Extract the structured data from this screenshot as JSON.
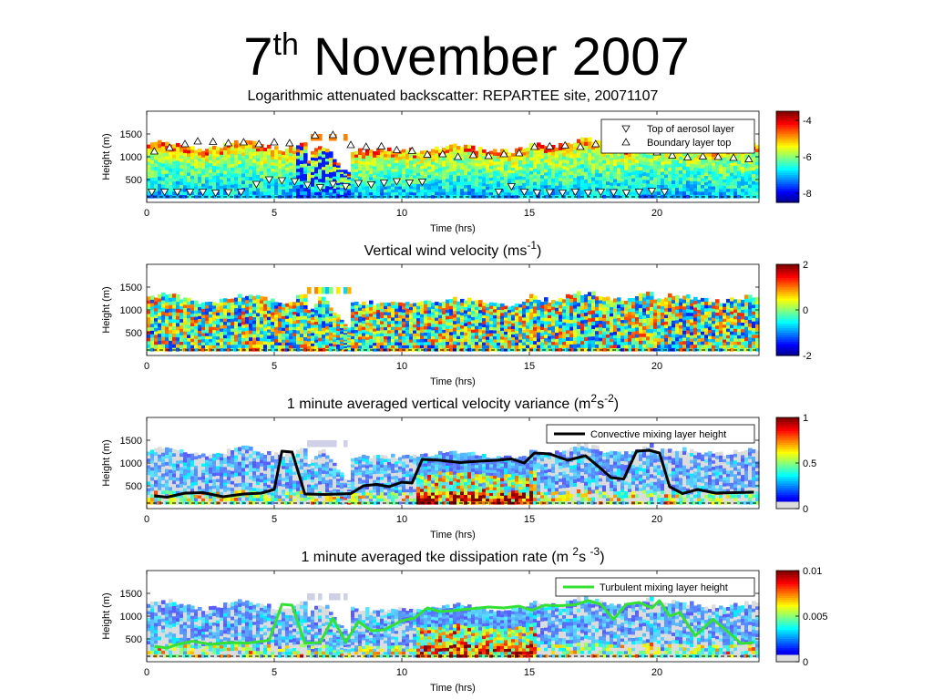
{
  "page_title": {
    "main": "7",
    "sup": "th",
    "rest": " November 2007"
  },
  "chart_data": [
    {
      "type": "heatmap",
      "title": "Logarithmic attenuated backscatter: REPARTEE site, 20071107",
      "xlabel": "Time (hrs)",
      "ylabel": "Height (m)",
      "xlim": [
        0,
        24
      ],
      "xticks": [
        "0",
        "5",
        "10",
        "15",
        "20"
      ],
      "yticks": [
        "500",
        "1000",
        "1500"
      ],
      "colorbar": {
        "ticks": [
          "-4",
          "-6",
          "-8"
        ],
        "min": -8.5,
        "max": -3.5
      },
      "legend": [
        {
          "marker": "down-triangle",
          "label": "Top of aerosol layer"
        },
        {
          "marker": "up-triangle",
          "label": "Boundary layer top"
        }
      ],
      "markers": {
        "aerosol_top": [
          {
            "x": 0.2,
            "y": 230
          },
          {
            "x": 0.7,
            "y": 230
          },
          {
            "x": 1.2,
            "y": 230
          },
          {
            "x": 1.7,
            "y": 230
          },
          {
            "x": 2.2,
            "y": 230
          },
          {
            "x": 2.7,
            "y": 210
          },
          {
            "x": 3.2,
            "y": 220
          },
          {
            "x": 3.7,
            "y": 230
          },
          {
            "x": 4.3,
            "y": 400
          },
          {
            "x": 4.8,
            "y": 500
          },
          {
            "x": 5.3,
            "y": 480
          },
          {
            "x": 5.8,
            "y": 460
          },
          {
            "x": 6.3,
            "y": 380
          },
          {
            "x": 6.8,
            "y": 330
          },
          {
            "x": 7.3,
            "y": 400
          },
          {
            "x": 7.8,
            "y": 350
          },
          {
            "x": 8.3,
            "y": 420
          },
          {
            "x": 8.8,
            "y": 390
          },
          {
            "x": 9.3,
            "y": 430
          },
          {
            "x": 9.8,
            "y": 460
          },
          {
            "x": 10.3,
            "y": 430
          },
          {
            "x": 10.8,
            "y": 450
          },
          {
            "x": 13.8,
            "y": 230
          },
          {
            "x": 14.3,
            "y": 350
          },
          {
            "x": 14.8,
            "y": 230
          },
          {
            "x": 15.3,
            "y": 210
          },
          {
            "x": 15.8,
            "y": 220
          },
          {
            "x": 16.3,
            "y": 210
          },
          {
            "x": 16.8,
            "y": 230
          },
          {
            "x": 17.3,
            "y": 210
          },
          {
            "x": 17.8,
            "y": 230
          },
          {
            "x": 18.3,
            "y": 220
          },
          {
            "x": 18.8,
            "y": 210
          },
          {
            "x": 19.3,
            "y": 230
          },
          {
            "x": 19.8,
            "y": 250
          },
          {
            "x": 20.3,
            "y": 230
          }
        ],
        "boundary_top": [
          {
            "x": 0.3,
            "y": 1120
          },
          {
            "x": 0.9,
            "y": 1200
          },
          {
            "x": 1.5,
            "y": 1280
          },
          {
            "x": 2.0,
            "y": 1340
          },
          {
            "x": 2.6,
            "y": 1330
          },
          {
            "x": 3.2,
            "y": 1300
          },
          {
            "x": 3.8,
            "y": 1320
          },
          {
            "x": 4.4,
            "y": 1280
          },
          {
            "x": 5.0,
            "y": 1320
          },
          {
            "x": 5.6,
            "y": 1300
          },
          {
            "x": 6.6,
            "y": 1470
          },
          {
            "x": 7.3,
            "y": 1480
          },
          {
            "x": 8.0,
            "y": 1260
          },
          {
            "x": 8.6,
            "y": 1220
          },
          {
            "x": 9.2,
            "y": 1230
          },
          {
            "x": 9.8,
            "y": 1150
          },
          {
            "x": 10.4,
            "y": 1130
          },
          {
            "x": 11.0,
            "y": 1050
          },
          {
            "x": 11.6,
            "y": 1060
          },
          {
            "x": 12.2,
            "y": 1000
          },
          {
            "x": 12.8,
            "y": 1040
          },
          {
            "x": 13.4,
            "y": 1020
          },
          {
            "x": 14.0,
            "y": 1060
          },
          {
            "x": 14.6,
            "y": 1080
          },
          {
            "x": 15.2,
            "y": 1220
          },
          {
            "x": 15.8,
            "y": 1230
          },
          {
            "x": 16.4,
            "y": 1250
          },
          {
            "x": 17.0,
            "y": 1220
          },
          {
            "x": 17.6,
            "y": 1280
          },
          {
            "x": 18.2,
            "y": 1300
          },
          {
            "x": 18.8,
            "y": 1230
          },
          {
            "x": 19.4,
            "y": 1170
          },
          {
            "x": 20.0,
            "y": 1100
          },
          {
            "x": 20.6,
            "y": 1030
          },
          {
            "x": 21.2,
            "y": 990
          },
          {
            "x": 21.8,
            "y": 1010
          },
          {
            "x": 22.4,
            "y": 1000
          },
          {
            "x": 23.0,
            "y": 980
          },
          {
            "x": 23.6,
            "y": 950
          }
        ]
      }
    },
    {
      "type": "heatmap",
      "title_main": "Vertical wind velocity (m",
      "title_sup": "-1",
      "title_end": ")",
      "title_after_sup": "s",
      "xlabel": "Time (hrs)",
      "ylabel": "Height (m)",
      "xlim": [
        0,
        24
      ],
      "xticks": [
        "0",
        "5",
        "10",
        "15",
        "20"
      ],
      "yticks": [
        "500",
        "1000",
        "1500"
      ],
      "colorbar": {
        "ticks": [
          "2",
          "0",
          "-2"
        ],
        "min": -2,
        "max": 2
      }
    },
    {
      "type": "heatmap",
      "title_parts": [
        "1 minute averaged vertical velocity variance (m",
        "2",
        "s",
        "-2",
        ")"
      ],
      "xlabel": "Time (hrs)",
      "ylabel": "Height (m)",
      "xlim": [
        0,
        24
      ],
      "xticks": [
        "0",
        "5",
        "10",
        "15",
        "20"
      ],
      "yticks": [
        "500",
        "1000",
        "1500"
      ],
      "colorbar": {
        "ticks": [
          "1",
          "0.5",
          "0"
        ],
        "min": 0,
        "max": 1
      },
      "series": [
        {
          "name": "Convective mixing layer height",
          "color": "#000000",
          "x": [
            0.3,
            0.8,
            1.5,
            2.2,
            3.0,
            3.8,
            4.5,
            5.0,
            5.3,
            5.7,
            6.2,
            7.0,
            8.0,
            8.5,
            9.0,
            9.5,
            10.0,
            10.4,
            10.8,
            11.5,
            12.3,
            13.0,
            13.7,
            14.3,
            14.8,
            15.2,
            15.8,
            16.5,
            17.2,
            17.8,
            18.2,
            18.7,
            19.2,
            19.7,
            20.1,
            20.5,
            21.0,
            21.6,
            22.3,
            23.0,
            23.8
          ],
          "y": [
            280,
            250,
            340,
            350,
            260,
            320,
            340,
            420,
            1260,
            1240,
            320,
            310,
            330,
            500,
            530,
            480,
            580,
            560,
            1080,
            1060,
            1010,
            1040,
            1060,
            1090,
            1000,
            1220,
            1200,
            1060,
            1160,
            880,
            680,
            650,
            1260,
            1280,
            1220,
            480,
            330,
            420,
            340,
            350,
            360
          ]
        }
      ]
    },
    {
      "type": "heatmap",
      "title_parts": [
        "1 minute averaged tke dissipation rate (m ",
        "2",
        "s ",
        "-3",
        ")"
      ],
      "xlabel": "Time (hrs)",
      "ylabel": "Height (m)",
      "xlim": [
        0,
        24
      ],
      "xticks": [
        "0",
        "5",
        "10",
        "15",
        "20"
      ],
      "yticks": [
        "500",
        "1000",
        "1500"
      ],
      "colorbar": {
        "ticks": [
          "0.01",
          "0.005",
          "0"
        ],
        "min": 0,
        "max": 0.01
      },
      "series": [
        {
          "name": "Turbulent mixing layer height",
          "color": "#33e033",
          "x": [
            0.3,
            0.8,
            1.2,
            1.8,
            2.5,
            3.2,
            4.0,
            4.8,
            5.3,
            5.7,
            6.2,
            6.8,
            7.3,
            7.8,
            8.3,
            8.8,
            9.3,
            10.0,
            10.5,
            11.0,
            11.5,
            12.0,
            12.7,
            13.4,
            14.0,
            14.6,
            15.1,
            15.6,
            16.2,
            16.8,
            17.3,
            17.8,
            18.3,
            18.8,
            19.3,
            19.8,
            20.1,
            20.5,
            20.9,
            21.5,
            22.2,
            22.8,
            23.3,
            23.8
          ],
          "y": [
            340,
            300,
            380,
            450,
            380,
            420,
            410,
            470,
            1260,
            1240,
            410,
            420,
            950,
            430,
            880,
            680,
            700,
            900,
            960,
            1180,
            1100,
            1120,
            1160,
            1200,
            1180,
            1220,
            1130,
            1240,
            1230,
            1250,
            1340,
            1260,
            930,
            1260,
            1300,
            1180,
            1340,
            1000,
            1080,
            570,
            930,
            650,
            400,
            420
          ]
        }
      ]
    }
  ]
}
